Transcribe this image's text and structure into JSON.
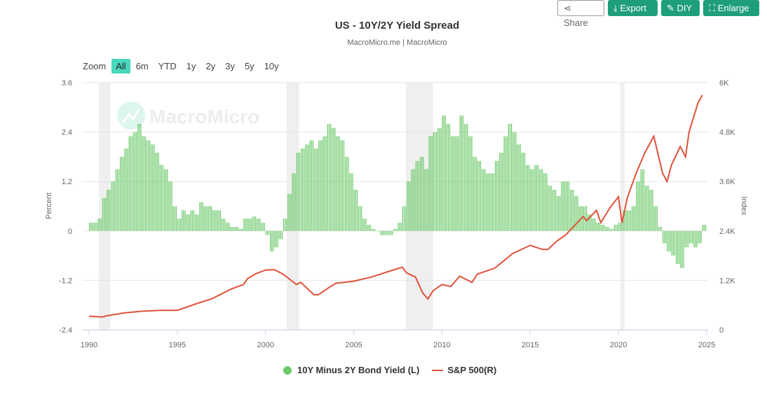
{
  "toolbar": {
    "share": "Share",
    "export": "Export",
    "diy": "DIY",
    "enlarge": "Enlarge"
  },
  "zoom": {
    "label": "Zoom",
    "options": [
      "All",
      "6m",
      "YTD",
      "1y",
      "2y",
      "3y",
      "5y",
      "10y"
    ],
    "selected": "All"
  },
  "watermark": "MacroMicro",
  "chart_data": {
    "type": "bar+line",
    "title": "US - 10Y/2Y Yield Spread",
    "subtitle": "MacroMicro.me | MacroMicro",
    "ylabel": "Percent",
    "y2label": "Index",
    "xlim": [
      1990,
      2025
    ],
    "ylim": [
      -2.4,
      3.6
    ],
    "y2lim": [
      0,
      6000
    ],
    "xticks": [
      "1990",
      "1995",
      "2000",
      "2005",
      "2010",
      "2015",
      "2020",
      "2025"
    ],
    "yticks": [
      "3.6",
      "2.4",
      "1.2",
      "0",
      "-1.2",
      "-2.4"
    ],
    "y2ticks": [
      "6K",
      "4.8K",
      "3.6K",
      "2.4K",
      "1.2K",
      "0"
    ],
    "grid": true,
    "legend": "bottom",
    "recessions": [
      [
        1990.55,
        1991.2
      ],
      [
        2001.2,
        2001.9
      ],
      [
        2007.95,
        2009.5
      ],
      [
        2020.1,
        2020.35
      ]
    ],
    "colors": {
      "spread": "#6cc96a",
      "sp500": "#e0523a",
      "recession": "#efefef"
    },
    "series": [
      {
        "name": "10Y Minus 2Y Bond Yield (L)",
        "axis": "left",
        "type": "bar",
        "start": 1990,
        "step": 0.25,
        "values": [
          0.2,
          0.2,
          0.3,
          0.8,
          1.0,
          1.2,
          1.5,
          1.8,
          2.0,
          2.3,
          2.4,
          2.6,
          2.3,
          2.2,
          2.1,
          1.9,
          1.6,
          1.5,
          1.2,
          0.6,
          0.3,
          0.5,
          0.4,
          0.5,
          0.4,
          0.7,
          0.6,
          0.6,
          0.5,
          0.5,
          0.3,
          0.2,
          0.1,
          0.1,
          0.05,
          0.3,
          0.3,
          0.35,
          0.3,
          0.2,
          -0.1,
          -0.5,
          -0.4,
          -0.2,
          0.3,
          0.9,
          1.4,
          1.9,
          2.0,
          2.1,
          2.2,
          2.0,
          2.2,
          2.3,
          2.6,
          2.5,
          2.3,
          2.2,
          1.8,
          1.4,
          1.0,
          0.6,
          0.3,
          0.15,
          0.05,
          0.0,
          -0.1,
          -0.1,
          -0.1,
          0.05,
          0.2,
          0.6,
          1.2,
          1.5,
          1.7,
          1.8,
          1.5,
          2.3,
          2.4,
          2.5,
          2.8,
          2.6,
          2.3,
          2.3,
          2.8,
          2.6,
          2.3,
          1.8,
          1.7,
          1.5,
          1.4,
          1.4,
          1.7,
          1.9,
          2.3,
          2.6,
          2.4,
          2.1,
          1.9,
          1.6,
          1.5,
          1.6,
          1.5,
          1.4,
          1.1,
          1.0,
          0.85,
          1.2,
          1.2,
          1.0,
          0.85,
          0.6,
          0.6,
          0.4,
          0.3,
          0.2,
          0.15,
          0.1,
          0.05,
          0.15,
          0.2,
          0.5,
          0.5,
          0.6,
          1.2,
          1.5,
          1.1,
          1.0,
          0.6,
          0.1,
          -0.3,
          -0.5,
          -0.6,
          -0.8,
          -0.9,
          -0.4,
          -0.3,
          -0.4,
          -0.3,
          0.15
        ]
      },
      {
        "name": "S&P 500(R)",
        "axis": "right",
        "type": "line",
        "x": [
          1990,
          1990.75,
          1991,
          1992,
          1993,
          1994,
          1995,
          1996,
          1997,
          1998,
          1998.75,
          1999,
          1999.5,
          2000,
          2000.5,
          2001,
          2001.75,
          2002,
          2002.5,
          2002.75,
          2003,
          2003.5,
          2004,
          2005,
          2006,
          2007,
          2007.75,
          2008,
          2008.5,
          2008.9,
          2009.2,
          2009.5,
          2010,
          2010.5,
          2011,
          2011.7,
          2012,
          2013,
          2014,
          2015,
          2015.7,
          2016,
          2016.5,
          2017,
          2018,
          2018.2,
          2018.75,
          2019,
          2019.5,
          2020,
          2020.2,
          2020.5,
          2021,
          2021.5,
          2022,
          2022.5,
          2022.75,
          2023,
          2023.5,
          2023.8,
          2024,
          2024.5,
          2024.75
        ],
        "values": [
          330,
          310,
          340,
          410,
          450,
          470,
          470,
          620,
          760,
          980,
          1100,
          1250,
          1370,
          1450,
          1460,
          1350,
          1100,
          1150,
          950,
          850,
          850,
          1000,
          1130,
          1180,
          1280,
          1420,
          1520,
          1380,
          1280,
          900,
          750,
          950,
          1100,
          1050,
          1300,
          1150,
          1350,
          1500,
          1850,
          2050,
          1950,
          1950,
          2150,
          2300,
          2750,
          2650,
          2900,
          2600,
          2950,
          3230,
          2600,
          3200,
          3800,
          4300,
          4700,
          3800,
          3600,
          4000,
          4450,
          4200,
          4800,
          5500,
          5700
        ]
      }
    ]
  }
}
